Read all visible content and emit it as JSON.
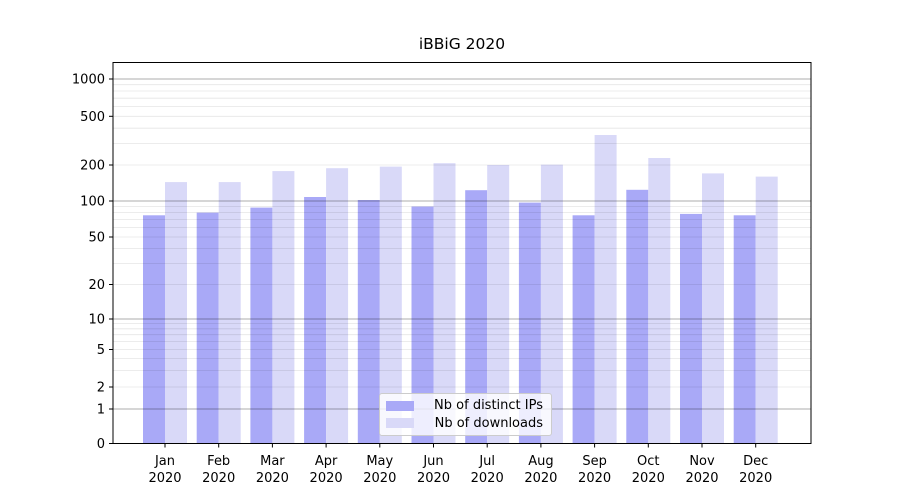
{
  "chart_data": {
    "type": "bar",
    "title": "iBBiG 2020",
    "categories": [
      "Jan",
      "Feb",
      "Mar",
      "Apr",
      "May",
      "Jun",
      "Jul",
      "Aug",
      "Sep",
      "Oct",
      "Nov",
      "Dec"
    ],
    "x_year": "2020",
    "series": [
      {
        "name": "Nb of distinct IPs",
        "color": "#a9a9f7",
        "values": [
          76,
          80,
          88,
          108,
          102,
          90,
          123,
          97,
          76,
          124,
          78,
          76
        ]
      },
      {
        "name": "Nb of downloads",
        "color": "#d9d9f8",
        "values": [
          144,
          144,
          178,
          188,
          194,
          207,
          200,
          201,
          352,
          228,
          170,
          160
        ]
      }
    ],
    "yticks": [
      0,
      1,
      2,
      5,
      10,
      20,
      50,
      100,
      200,
      500,
      1000
    ],
    "ylim": [
      0,
      1400
    ],
    "yscale": "log-like (symlog with 0 baseline)",
    "grid": {
      "major": [
        1,
        10,
        100,
        1000
      ],
      "minor": [
        2,
        3,
        4,
        5,
        6,
        7,
        8,
        9,
        20,
        30,
        40,
        50,
        60,
        70,
        80,
        90,
        200,
        300,
        400,
        500,
        600,
        700,
        800,
        900
      ]
    },
    "legend_position": "lower center",
    "colors": {
      "grid_major": "rgba(0,0,0,0.32)",
      "grid_minor": "rgba(0,0,0,0.10)",
      "spine": "#000000",
      "background": "#ffffff"
    }
  }
}
